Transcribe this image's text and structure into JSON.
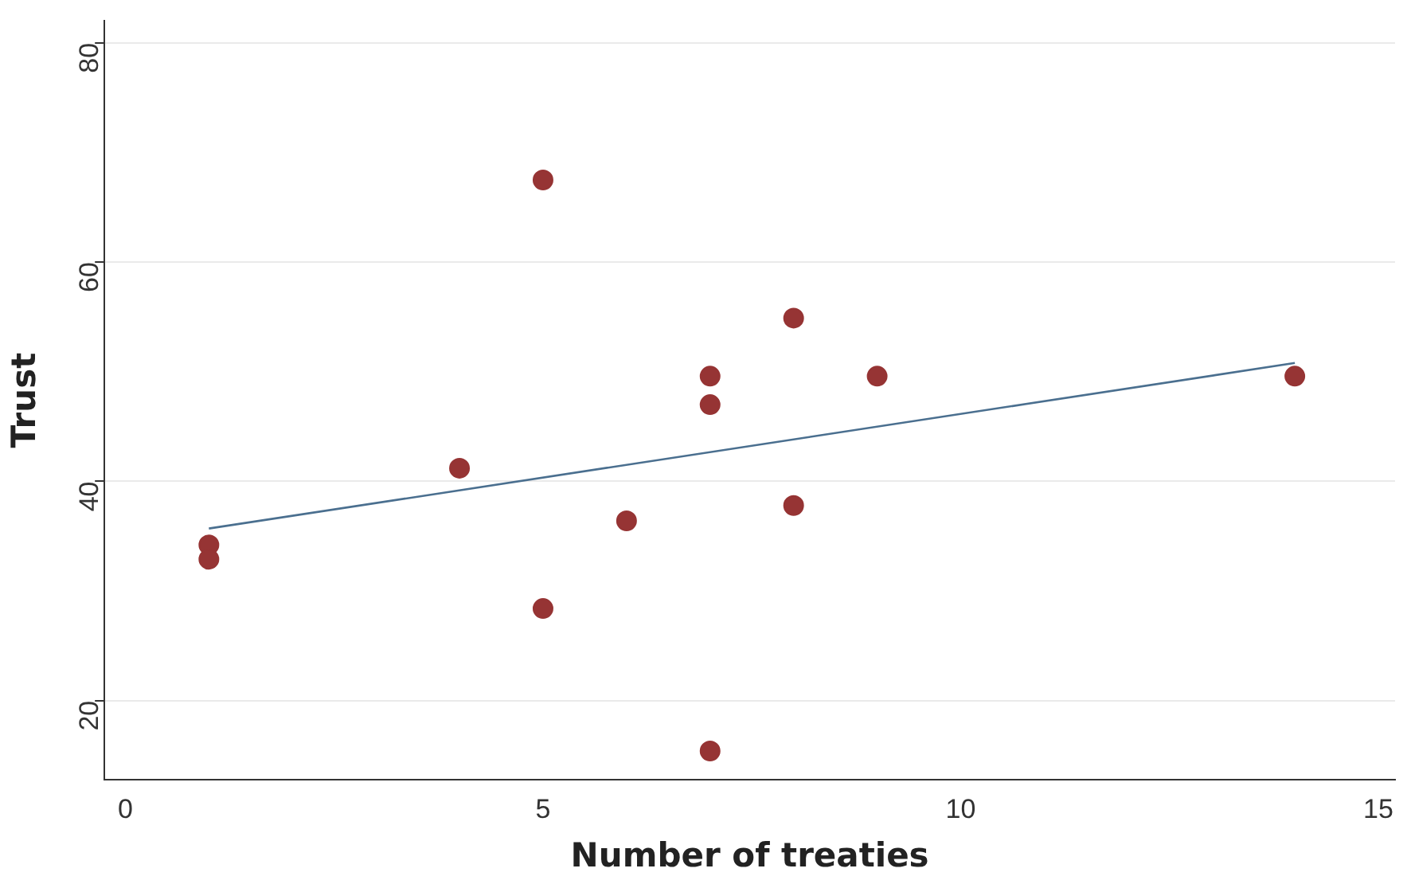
{
  "chart_data": {
    "type": "scatter",
    "xlabel": "Number of treaties",
    "ylabel": "Trust",
    "xlim": [
      -0.25,
      15.2
    ],
    "xticks": [
      0,
      5,
      10,
      15
    ],
    "ylim": [
      12.8,
      82
    ],
    "yticks": [
      20,
      40,
      60,
      80
    ],
    "grid": "y",
    "legend": false,
    "marker": "circle",
    "series": [
      {
        "type": "scatter",
        "color": "#963434",
        "x": [
          1,
          1,
          4,
          5,
          5,
          6,
          7,
          7,
          7,
          8,
          8,
          9,
          14
        ],
        "values": [
          34.2,
          32.9,
          41.2,
          67.5,
          28.4,
          36.4,
          49.6,
          47.0,
          15.4,
          54.9,
          37.8,
          49.6,
          49.6
        ]
      },
      {
        "type": "line",
        "color": "#4a6f8f",
        "x": [
          1,
          14
        ],
        "values": [
          35.7,
          50.8
        ],
        "marker": "none"
      }
    ]
  }
}
